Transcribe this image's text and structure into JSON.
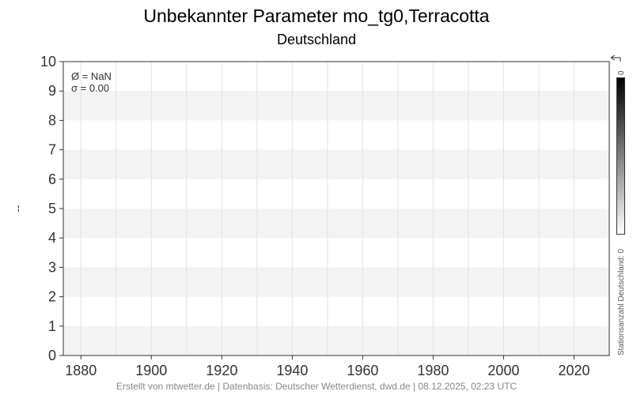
{
  "chart_data": {
    "type": "line",
    "title": "Unbekannter Parameter mo_tg0,Terracotta",
    "subtitle": "Deutschland",
    "xlabel": "",
    "ylabel": "--",
    "xlim": [
      1875,
      2030
    ],
    "ylim": [
      0,
      10
    ],
    "xticks": [
      1880,
      1900,
      1920,
      1940,
      1960,
      1980,
      2000,
      2020
    ],
    "yticks": [
      0,
      1,
      2,
      3,
      4,
      5,
      6,
      7,
      8,
      9,
      10
    ],
    "grid": true,
    "series": [],
    "stats": {
      "mean": "Ø = NaN",
      "sigma": "σ = 0.00"
    },
    "colorbar": {
      "label": "Stationsanzahl Deutschland: 0",
      "max_label": "0",
      "colors": [
        "#000000",
        "#ffffff"
      ]
    }
  },
  "footer": "Erstellt von mtwetter.de | Datenbasis: Deutscher Wetterdienst, dwd.de | 08.12.2025, 02:23 UTC"
}
